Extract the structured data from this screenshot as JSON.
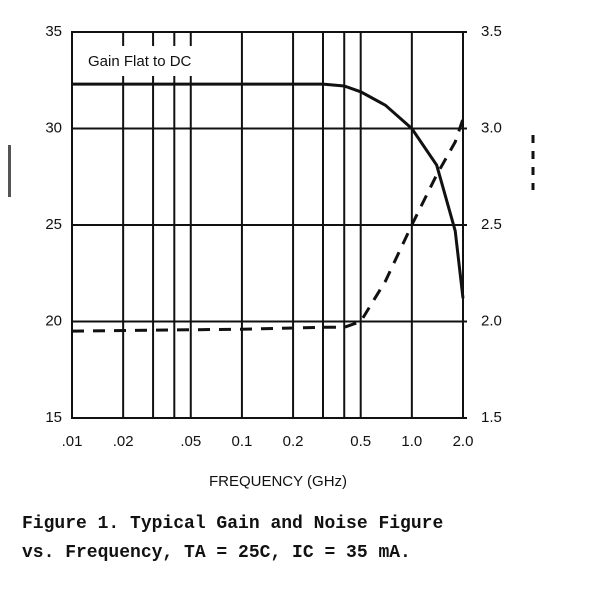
{
  "chart_data": {
    "type": "line",
    "annotation": "Gain Flat to DC",
    "xlabel": "FREQUENCY (GHz)",
    "caption": [
      "Figure 1.  Typical Gain and Noise Figure",
      "vs. Frequency, TA = 25C, IC = 35 mA."
    ],
    "x": [
      0.01,
      0.1,
      0.3,
      0.4,
      0.5,
      0.7,
      1.0,
      1.4,
      1.8,
      2.0
    ],
    "series": [
      {
        "color": "#111111",
        "style": "solid",
        "values": [
          32.3,
          32.3,
          32.3,
          32.2,
          31.9,
          31.2,
          30.0,
          28.1,
          24.7,
          21.2
        ]
      },
      {
        "color": "#111111",
        "style": "dashed",
        "axis": "y2",
        "values": [
          1.95,
          1.96,
          1.97,
          1.97,
          2.0,
          2.21,
          2.5,
          2.76,
          2.93,
          3.05
        ]
      }
    ],
    "xscale": "log",
    "xlim": [
      0.01,
      2.0
    ],
    "xticks": [
      {
        "value": 0.01,
        "label": ".01"
      },
      {
        "value": 0.02,
        "label": ".02"
      },
      {
        "value": 0.05,
        "label": ".05"
      },
      0.1,
      0.2,
      0.5,
      {
        "value": 1,
        "label": "1.0"
      },
      {
        "value": 2,
        "label": "2.0"
      }
    ],
    "xgrid_minor": [
      0.03,
      0.04,
      0.3,
      0.4
    ],
    "ylim": [
      15,
      35
    ],
    "yticks": [
      15,
      20,
      25,
      30,
      35
    ],
    "y2lim": [
      1.5,
      3.5
    ],
    "y2ticks": [
      1.5,
      {
        "value": 2,
        "label": "2.0"
      },
      2.5,
      {
        "value": 3,
        "label": "3.0"
      },
      3.5
    ],
    "grid": true
  }
}
